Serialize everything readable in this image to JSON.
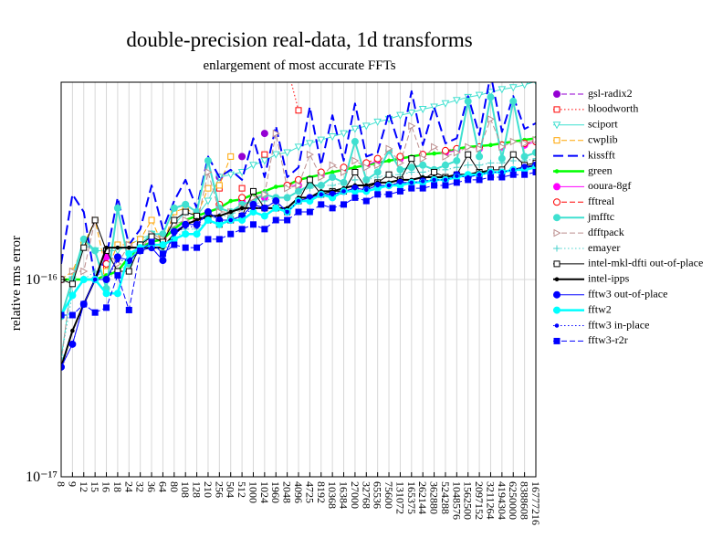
{
  "chart_data": {
    "type": "line",
    "title": "double-precision real-data, 1d transforms",
    "subtitle": "enlargement of most accurate FFTs",
    "y_label": "relative rms error",
    "log_y": true,
    "grid": true,
    "ylim": [
      1e-17,
      1e-15
    ],
    "yticks": [
      {
        "value": 1e-17,
        "label": "10⁻¹⁷"
      },
      {
        "value": 1e-16,
        "label": "10⁻¹⁶"
      }
    ],
    "categories": [
      "8",
      "9",
      "12",
      "15",
      "16",
      "18",
      "24",
      "32",
      "36",
      "64",
      "80",
      "108",
      "128",
      "210",
      "256",
      "504",
      "512",
      "1000",
      "1024",
      "1960",
      "2048",
      "4096",
      "4725",
      "8192",
      "10368",
      "16384",
      "27000",
      "32768",
      "65536",
      "75600",
      "131072",
      "165375",
      "262144",
      "362880",
      "524288",
      "1048576",
      "1562500",
      "2097152",
      "3211264",
      "4194304",
      "6250000",
      "8388608",
      "16777216"
    ],
    "series": [
      {
        "name": "gsl-radix2",
        "color": "#9400d3",
        "dash": "dashed",
        "width": 1,
        "marker": "circle",
        "filled": true,
        "values": [
          1e-16,
          null,
          null,
          null,
          1.4e-16,
          null,
          null,
          1.5e-16,
          null,
          1.6e-16,
          null,
          null,
          2.2e-16,
          null,
          3.3e-16,
          null,
          4.2e-16,
          null,
          5.5e-16,
          null,
          1.1e-15,
          null,
          null,
          null,
          null,
          null,
          null,
          null,
          null,
          null,
          null,
          null,
          null,
          null,
          null,
          null,
          null,
          null,
          null,
          null,
          null,
          null,
          null
        ]
      },
      {
        "name": "bloodworth",
        "color": "#ff0000",
        "dash": "dotted",
        "width": 1,
        "marker": "square",
        "filled": false,
        "values": [
          1e-16,
          null,
          null,
          null,
          1.15e-16,
          null,
          null,
          1.5e-16,
          null,
          1.6e-16,
          null,
          null,
          2e-16,
          null,
          2.9e-16,
          null,
          2.9e-16,
          null,
          4.3e-16,
          null,
          1.2e-15,
          7.2e-16,
          null,
          null,
          null,
          null,
          null,
          null,
          null,
          null,
          null,
          null,
          null,
          null,
          null,
          null,
          null,
          null,
          null,
          null,
          null,
          null,
          null
        ]
      },
      {
        "name": "sciport",
        "color": "#40e0d0",
        "dash": "solid",
        "width": 1,
        "marker": "triangle-down",
        "filled": false,
        "values": [
          4e-17,
          1e-16,
          1.5e-16,
          1.4e-16,
          1.4e-16,
          1.4e-16,
          1.5e-16,
          1.6e-16,
          1.7e-16,
          1.6e-16,
          1.9e-16,
          2.2e-16,
          2.1e-16,
          2.5e-16,
          3.3e-16,
          3.4e-16,
          3.5e-16,
          3.8e-16,
          4e-16,
          4.3e-16,
          4.4e-16,
          4.7e-16,
          4.9e-16,
          5.1e-16,
          5.3e-16,
          5.5e-16,
          5.8e-16,
          6e-16,
          6.3e-16,
          6.5e-16,
          6.8e-16,
          7e-16,
          7.3e-16,
          7.5e-16,
          7.8e-16,
          8.1e-16,
          8.4e-16,
          8.6e-16,
          8.9e-16,
          9.2e-16,
          9.4e-16,
          9.7e-16,
          1.01e-15
        ]
      },
      {
        "name": "cwplib",
        "color": "#ffa500",
        "dash": "dashed",
        "width": 1,
        "marker": "square",
        "filled": false,
        "values": [
          1e-16,
          1.1e-16,
          1.5e-16,
          2e-16,
          1.1e-16,
          1.5e-16,
          1.5e-16,
          1.6e-16,
          2e-16,
          1.5e-16,
          2.2e-16,
          2.3e-16,
          2.1e-16,
          2.9e-16,
          3e-16,
          4.2e-16,
          null,
          null,
          null,
          null,
          null,
          null,
          null,
          null,
          null,
          null,
          null,
          null,
          null,
          null,
          null,
          null,
          null,
          null,
          null,
          null,
          null,
          null,
          null,
          null,
          null,
          null,
          null
        ]
      },
      {
        "name": "kissfft",
        "color": "#0000ff",
        "dash": "long",
        "width": 2,
        "marker": "none",
        "filled": false,
        "values": [
          1.2e-16,
          2.7e-16,
          2.2e-16,
          1e-16,
          1.3e-16,
          2.6e-16,
          1.5e-16,
          1.8e-16,
          3e-16,
          1.8e-16,
          2.5e-16,
          3.2e-16,
          2.3e-16,
          4.2e-16,
          3.3e-16,
          3.6e-16,
          3.2e-16,
          5.2e-16,
          3.3e-16,
          6e-16,
          3.3e-16,
          3.7e-16,
          7.5e-16,
          3.8e-16,
          6.8e-16,
          4e-16,
          7.8e-16,
          4.2e-16,
          4.4e-16,
          7e-16,
          4.6e-16,
          9e-16,
          4.8e-16,
          7.5e-16,
          4.9e-16,
          5.2e-16,
          8.5e-16,
          5.4e-16,
          1.1e-15,
          5.6e-16,
          8.5e-16,
          5.8e-16,
          6.2e-16
        ]
      },
      {
        "name": "green",
        "color": "#00ff00",
        "dash": "solid",
        "width": 2.5,
        "marker": "dot",
        "filled": true,
        "values": [
          1e-16,
          1e-16,
          1e-16,
          1e-16,
          1.05e-16,
          1.1e-16,
          1.3e-16,
          1.45e-16,
          1.55e-16,
          1.6e-16,
          1.8e-16,
          2e-16,
          2.1e-16,
          2.2e-16,
          2.3e-16,
          2.5e-16,
          2.55e-16,
          2.7e-16,
          2.8e-16,
          2.95e-16,
          3e-16,
          3.2e-16,
          3.3e-16,
          3.4e-16,
          3.5e-16,
          3.6e-16,
          3.7e-16,
          3.8e-16,
          3.9e-16,
          4e-16,
          4.1e-16,
          4.2e-16,
          4.3e-16,
          4.35e-16,
          4.4e-16,
          4.6e-16,
          4.7e-16,
          4.75e-16,
          4.8e-16,
          4.9e-16,
          5e-16,
          5.1e-16,
          5.2e-16
        ]
      },
      {
        "name": "ooura-8gf",
        "color": "#ff00ff",
        "dash": "solid",
        "width": 1,
        "marker": "circle",
        "filled": true,
        "values": [
          1e-16,
          null,
          null,
          null,
          1.3e-16,
          null,
          null,
          1.5e-16,
          null,
          1.6e-16,
          null,
          null,
          2e-16,
          null,
          2.3e-16,
          null,
          2.5e-16,
          null,
          2.6e-16,
          null,
          3e-16,
          3e-16,
          null,
          3.4e-16,
          null,
          3.6e-16,
          null,
          3.8e-16,
          4e-16,
          null,
          4.1e-16,
          null,
          4.3e-16,
          null,
          4.4e-16,
          4.5e-16,
          null,
          4.6e-16,
          null,
          4.7e-16,
          null,
          4.8e-16,
          5e-16
        ]
      },
      {
        "name": "fftreal",
        "color": "#ff0000",
        "dash": "dashed",
        "width": 1,
        "marker": "circle",
        "filled": false,
        "values": [
          1e-16,
          null,
          null,
          null,
          1.2e-16,
          null,
          null,
          1.5e-16,
          null,
          1.6e-16,
          null,
          null,
          2e-16,
          null,
          2.4e-16,
          null,
          2.6e-16,
          null,
          2.7e-16,
          null,
          3e-16,
          3.2e-16,
          null,
          3.5e-16,
          null,
          3.7e-16,
          null,
          3.9e-16,
          4.1e-16,
          null,
          4.2e-16,
          null,
          4.3e-16,
          null,
          4.5e-16,
          4.6e-16,
          null,
          4.7e-16,
          null,
          4.8e-16,
          null,
          4.9e-16,
          5e-16
        ]
      },
      {
        "name": "jmfftc",
        "color": "#40e0d0",
        "dash": "solid",
        "width": 2,
        "marker": "circle",
        "filled": true,
        "values": [
          6.5e-17,
          1e-16,
          1.6e-16,
          1.4e-16,
          9e-17,
          2.3e-16,
          1.2e-16,
          1.5e-16,
          1.7e-16,
          1.7e-16,
          2.3e-16,
          2.4e-16,
          2.2e-16,
          4e-16,
          2.3e-16,
          2.2e-16,
          2.4e-16,
          2.5e-16,
          2.7e-16,
          2.6e-16,
          2.6e-16,
          2.8e-16,
          3e-16,
          3e-16,
          3.3e-16,
          3.1e-16,
          5e-16,
          3.2e-16,
          3.5e-16,
          4.5e-16,
          3.6e-16,
          3.7e-16,
          3.8e-16,
          3.6e-16,
          3.8e-16,
          4e-16,
          8e-16,
          4.2e-16,
          8.4e-16,
          4.1e-16,
          8e-16,
          4.2e-16,
          4.4e-16
        ]
      },
      {
        "name": "dfftpack",
        "color": "#bc8f8f",
        "dash": "dashed",
        "width": 1,
        "marker": "triangle-right",
        "filled": false,
        "values": [
          3.8e-17,
          1.1e-16,
          1.1e-16,
          2e-16,
          1.4e-16,
          1.2e-16,
          1.5e-16,
          1.4e-16,
          1.7e-16,
          1.6e-16,
          1.9e-16,
          2e-16,
          1.9e-16,
          3.5e-16,
          2.2e-16,
          2.2e-16,
          2.3e-16,
          2.6e-16,
          2.7e-16,
          5.5e-16,
          2.9e-16,
          3e-16,
          4.3e-16,
          3.3e-16,
          3.8e-16,
          3.5e-16,
          4e-16,
          3.7e-16,
          3.8e-16,
          4.6e-16,
          3.9e-16,
          6e-16,
          4.1e-16,
          4.7e-16,
          4.2e-16,
          4.4e-16,
          4.7e-16,
          4.6e-16,
          6.5e-16,
          4.7e-16,
          5e-16,
          4.9e-16,
          5.1e-16
        ]
      },
      {
        "name": "emayer",
        "color": "#48d1cc",
        "dash": "dotted",
        "width": 1,
        "marker": "plus",
        "filled": false,
        "values": [
          4e-17,
          8.5e-17,
          1e-16,
          1.1e-16,
          1e-16,
          1.1e-16,
          1.2e-16,
          1.4e-16,
          1.5e-16,
          1.4e-16,
          1.6e-16,
          1.8e-16,
          1.8e-16,
          2e-16,
          2.1e-16,
          2.1e-16,
          2.3e-16,
          2.4e-16,
          2.5e-16,
          2.6e-16,
          2.6e-16,
          2.8e-16,
          2.9e-16,
          3e-16,
          3e-16,
          3.1e-16,
          3.2e-16,
          3.2e-16,
          3.3e-16,
          3.4e-16,
          3.4e-16,
          3.5e-16,
          3.5e-16,
          3.6e-16,
          3.6e-16,
          3.7e-16,
          3.8e-16,
          3.8e-16,
          3.9e-16,
          3.9e-16,
          4e-16,
          4e-16,
          4.1e-16
        ]
      },
      {
        "name": "intel-mkl-dfti out-of-place",
        "color": "#000000",
        "dash": "solid",
        "width": 1,
        "marker": "square",
        "filled": false,
        "values": [
          1e-16,
          9.5e-17,
          1.45e-16,
          2e-16,
          1.4e-16,
          1.1e-16,
          1.1e-16,
          1.5e-16,
          1.65e-16,
          1.55e-16,
          2e-16,
          2.2e-16,
          2.1e-16,
          2e-16,
          1.9e-16,
          2e-16,
          2.1e-16,
          2.8e-16,
          2.3e-16,
          2.3e-16,
          2.2e-16,
          2.5e-16,
          3.2e-16,
          2.7e-16,
          2.8e-16,
          2.8e-16,
          3.5e-16,
          2.9e-16,
          3.1e-16,
          3.4e-16,
          3.2e-16,
          4.1e-16,
          3.2e-16,
          3.5e-16,
          3.3e-16,
          3.4e-16,
          4.3e-16,
          3.5e-16,
          3.6e-16,
          3.6e-16,
          4.3e-16,
          3.8e-16,
          3.9e-16
        ]
      },
      {
        "name": "intel-ipps",
        "color": "#000000",
        "dash": "solid",
        "width": 2,
        "marker": "dot",
        "filled": true,
        "values": [
          3.6e-17,
          5.5e-17,
          7.5e-17,
          1e-16,
          1.45e-16,
          1.45e-16,
          1.45e-16,
          1.45e-16,
          1.45e-16,
          1.45e-16,
          1.7e-16,
          1.9e-16,
          2e-16,
          2.1e-16,
          2.1e-16,
          2.2e-16,
          2.3e-16,
          2.3e-16,
          2.3e-16,
          2.3e-16,
          2.3e-16,
          2.6e-16,
          2.6e-16,
          2.8e-16,
          2.8e-16,
          2.9e-16,
          3e-16,
          3e-16,
          3.1e-16,
          3.1e-16,
          3.2e-16,
          3.2e-16,
          3.3e-16,
          3.3e-16,
          3.3e-16,
          3.4e-16,
          3.4e-16,
          3.5e-16,
          3.5e-16,
          3.5e-16,
          3.6e-16,
          3.7e-16,
          3.8e-16
        ]
      },
      {
        "name": "fftw3 out-of-place",
        "color": "#0000ff",
        "dash": "solid",
        "width": 1,
        "marker": "circle",
        "filled": true,
        "values": [
          3.6e-17,
          4.7e-17,
          7.5e-17,
          1e-16,
          1e-16,
          1.3e-16,
          1.25e-16,
          1.4e-16,
          1.45e-16,
          1.25e-16,
          1.75e-16,
          1.9e-16,
          1.9e-16,
          2.2e-16,
          2e-16,
          2e-16,
          2.1e-16,
          2.4e-16,
          2.3e-16,
          2.5e-16,
          2.2e-16,
          2.5e-16,
          2.6e-16,
          2.7e-16,
          2.7e-16,
          2.8e-16,
          2.9e-16,
          2.85e-16,
          3e-16,
          3e-16,
          3.1e-16,
          3.1e-16,
          3.15e-16,
          3.2e-16,
          3.2e-16,
          3.4e-16,
          3.3e-16,
          3.4e-16,
          3.5e-16,
          3.5e-16,
          3.6e-16,
          3.7e-16,
          3.8e-16
        ]
      },
      {
        "name": "fftw2",
        "color": "#00ffff",
        "dash": "solid",
        "width": 2.5,
        "marker": "circle",
        "filled": true,
        "values": [
          6.6e-17,
          8.3e-17,
          1e-16,
          1e-16,
          8.5e-17,
          8.5e-17,
          1.35e-16,
          1.45e-16,
          1.5e-16,
          1.5e-16,
          1.6e-16,
          1.7e-16,
          1.7e-16,
          2e-16,
          1.9e-16,
          2e-16,
          2e-16,
          2.2e-16,
          2.1e-16,
          2.3e-16,
          2.2e-16,
          2.5e-16,
          2.5e-16,
          2.7e-16,
          2.6e-16,
          2.8e-16,
          2.8e-16,
          2.8e-16,
          2.9e-16,
          3e-16,
          3e-16,
          3.1e-16,
          3.1e-16,
          3.2e-16,
          3.2e-16,
          3.3e-16,
          3.4e-16,
          3.4e-16,
          3.5e-16,
          3.5e-16,
          3.6e-16,
          3.6e-16,
          3.7e-16
        ]
      },
      {
        "name": "fftw3 in-place",
        "color": "#0000ff",
        "dash": "dotted",
        "width": 1,
        "marker": "dot",
        "filled": true,
        "values": [
          3.6e-17,
          4.7e-17,
          7.5e-17,
          1e-16,
          1e-16,
          1.25e-16,
          1.25e-16,
          1.4e-16,
          1.45e-16,
          1.25e-16,
          1.7e-16,
          1.85e-16,
          1.85e-16,
          2.2e-16,
          2e-16,
          2e-16,
          2.1e-16,
          2.3e-16,
          2.3e-16,
          2.5e-16,
          2.2e-16,
          2.5e-16,
          2.6e-16,
          2.7e-16,
          2.7e-16,
          2.8e-16,
          2.9e-16,
          2.85e-16,
          3e-16,
          3e-16,
          3.1e-16,
          3.1e-16,
          3.15e-16,
          3.2e-16,
          3.2e-16,
          3.35e-16,
          3.3e-16,
          3.4e-16,
          3.5e-16,
          3.5e-16,
          3.6e-16,
          3.7e-16,
          3.8e-16
        ]
      },
      {
        "name": "fftw3-r2r",
        "color": "#0000ff",
        "dash": "dashed",
        "width": 1,
        "marker": "square",
        "filled": true,
        "values": [
          6.6e-17,
          6.6e-17,
          7.5e-17,
          6.8e-17,
          7.2e-17,
          1.05e-16,
          7e-17,
          1.4e-16,
          1.55e-16,
          1.35e-16,
          1.5e-16,
          1.45e-16,
          1.45e-16,
          1.6e-16,
          1.6e-16,
          1.7e-16,
          1.8e-16,
          1.9e-16,
          1.8e-16,
          2e-16,
          2e-16,
          2.2e-16,
          2.2e-16,
          2.4e-16,
          2.3e-16,
          2.4e-16,
          2.6e-16,
          2.5e-16,
          2.7e-16,
          2.7e-16,
          2.8e-16,
          2.9e-16,
          2.9e-16,
          3e-16,
          3e-16,
          3.1e-16,
          3.2e-16,
          3.2e-16,
          3.3e-16,
          3.3e-16,
          3.4e-16,
          3.4e-16,
          3.5e-16
        ]
      }
    ]
  }
}
